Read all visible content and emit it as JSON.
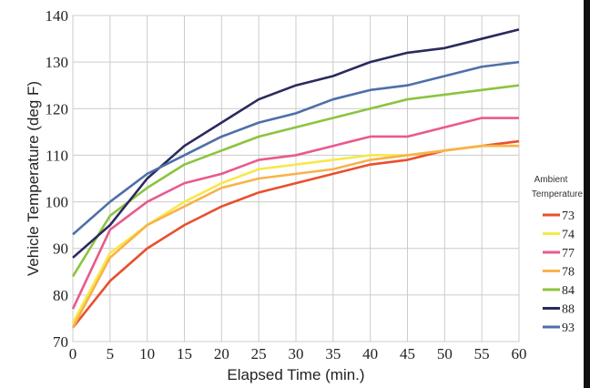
{
  "chart_data": {
    "type": "line",
    "title": "",
    "xlabel": "Elapsed Time (min.)",
    "ylabel": "Vehicle Temperature (deg F)",
    "xlim": [
      0,
      60
    ],
    "ylim": [
      70,
      140
    ],
    "grid": true,
    "x": [
      0,
      5,
      10,
      15,
      20,
      25,
      30,
      35,
      40,
      45,
      50,
      55,
      60
    ],
    "xticks": [
      "0",
      "5",
      "10",
      "15",
      "20",
      "25",
      "30",
      "35",
      "40",
      "45",
      "50",
      "55",
      "60"
    ],
    "yticks": [
      "70",
      "80",
      "90",
      "100",
      "110",
      "120",
      "130",
      "140"
    ],
    "legend_title": [
      "Ambient",
      "Temperature"
    ],
    "legend_position": "right",
    "series": [
      {
        "name": "73",
        "color": "#e8502e",
        "values": [
          73,
          83,
          90,
          95,
          99,
          102,
          104,
          106,
          108,
          109,
          111,
          112,
          113
        ]
      },
      {
        "name": "74",
        "color": "#f7e84a",
        "values": [
          74,
          89,
          95,
          100,
          104,
          107,
          108,
          109,
          110,
          110,
          111,
          112,
          112
        ]
      },
      {
        "name": "77",
        "color": "#e95a8c",
        "values": [
          77,
          94,
          100,
          104,
          106,
          109,
          110,
          112,
          114,
          114,
          116,
          118,
          118
        ]
      },
      {
        "name": "78",
        "color": "#f8b24a",
        "values": [
          73,
          88,
          95,
          99,
          103,
          105,
          106,
          107,
          109,
          110,
          111,
          112,
          112
        ]
      },
      {
        "name": "84",
        "color": "#8cc43f",
        "values": [
          84,
          97,
          103,
          108,
          111,
          114,
          116,
          118,
          120,
          122,
          123,
          124,
          125
        ]
      },
      {
        "name": "88",
        "color": "#2a2a5e",
        "values": [
          88,
          95,
          105,
          112,
          117,
          122,
          125,
          127,
          130,
          132,
          133,
          135,
          137
        ]
      },
      {
        "name": "93",
        "color": "#4f6fa8",
        "values": [
          93,
          100,
          106,
          110,
          114,
          117,
          119,
          122,
          124,
          125,
          127,
          129,
          130
        ]
      }
    ]
  }
}
